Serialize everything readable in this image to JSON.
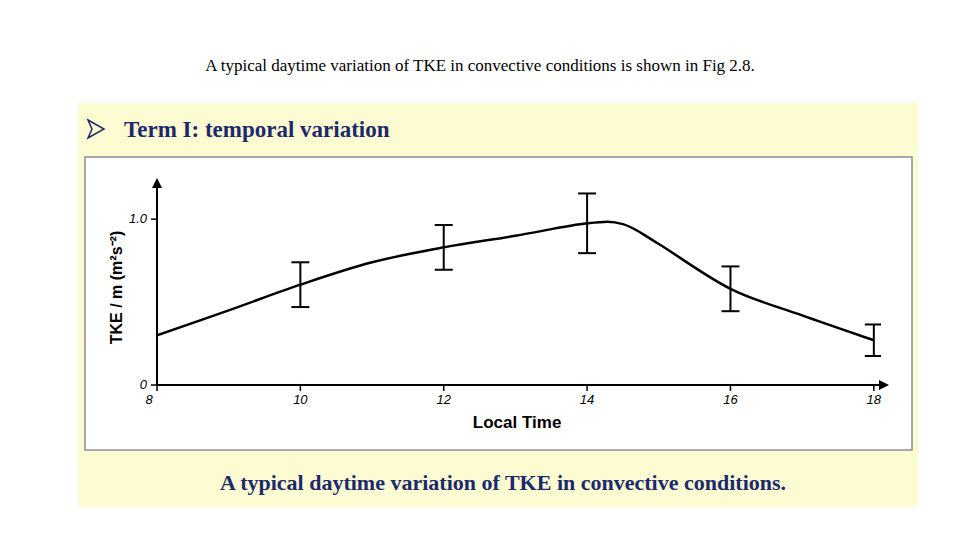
{
  "caption": "A typical daytime variation of TKE in convective conditions is shown in Fig 2.8.",
  "heading": "Term I: temporal variation",
  "chart_data": {
    "type": "line",
    "title": "A typical daytime variation of TKE in convective conditions.",
    "x_label": "Local Time",
    "y_label": "TKE / m (m²s⁻²)",
    "xlim": [
      8,
      18.1
    ],
    "xticks": [
      8,
      10,
      12,
      14,
      16,
      18
    ],
    "ylim": [
      0,
      1.2
    ],
    "yticks": [
      0,
      {
        "value": 1,
        "label": "1.0"
      }
    ],
    "grid": false,
    "x": [
      8,
      9,
      10,
      11,
      12,
      13,
      14,
      14.5,
      15,
      16,
      17,
      18
    ],
    "series": [
      {
        "color": "#000000",
        "line_style": "solid",
        "values": [
          0.3,
          0.45,
          0.605,
          0.74,
          0.83,
          0.9,
          0.975,
          0.97,
          0.85,
          0.58,
          0.42,
          0.27
        ],
        "errors": [
          null,
          null,
          0.135,
          null,
          0.135,
          null,
          0.18,
          null,
          null,
          0.135,
          null,
          0.095
        ]
      }
    ]
  }
}
